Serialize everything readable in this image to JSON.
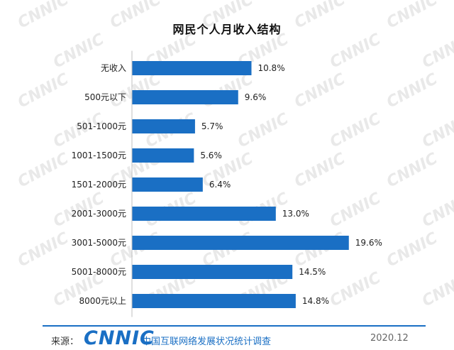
{
  "chart_data": {
    "type": "bar",
    "orientation": "horizontal",
    "title": "网民个人月收入结构",
    "categories": [
      "无收入",
      "500元以下",
      "501-1000元",
      "1001-1500元",
      "1501-2000元",
      "2001-3000元",
      "3001-5000元",
      "5001-8000元",
      "8000元以上"
    ],
    "values": [
      10.8,
      9.6,
      5.7,
      5.6,
      6.4,
      13.0,
      19.6,
      14.5,
      14.8
    ],
    "data_labels": [
      "10.8%",
      "9.6%",
      "5.7%",
      "5.6%",
      "6.4%",
      "13.0%",
      "19.6%",
      "14.5%",
      "14.8%"
    ],
    "value_unit": "%",
    "xlim": [
      0,
      20
    ],
    "grid": false,
    "legend": "none",
    "bar_color": "#1a6fc4"
  },
  "footer": {
    "source_label": "来源：",
    "brand": "CNNIC",
    "org_name": "中国互联网络发展状况统计调查",
    "date": "2020.12"
  },
  "watermark": {
    "text": "CNNIC",
    "color": "#e9e9e9"
  }
}
